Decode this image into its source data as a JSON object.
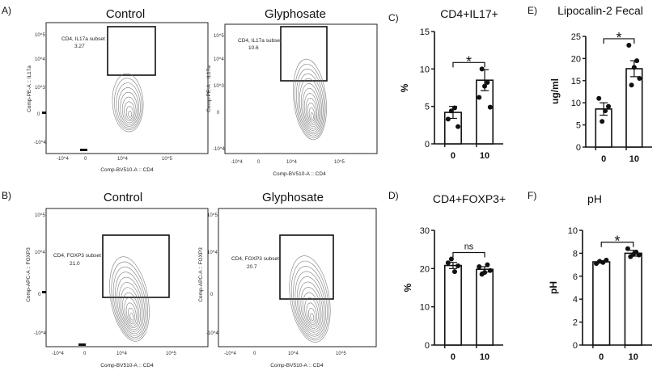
{
  "panel_labels": {
    "a": "A)",
    "b": "B)",
    "c": "C)",
    "d": "D)",
    "e": "E)",
    "f": "F)"
  },
  "flow": {
    "a_control": {
      "title": "Control",
      "gate_label": "CD4, IL17a subset",
      "gate_value": "3.27",
      "ylabel": "Comp-PE-A :: IL17a",
      "xlabel": "Comp-BV510-A :: CD4",
      "yticks": [
        "10^5",
        "10^4",
        "10^3",
        "0",
        "-10^4"
      ],
      "xticks": [
        "-10^4",
        "0",
        "10^4",
        "10^5"
      ]
    },
    "a_gly": {
      "title": "Glyphosate",
      "gate_label": "CD4, IL17a subset",
      "gate_value": "10.6",
      "ylabel": "Comp-PE-A :: IL17a",
      "xlabel": "Comp-BV510-A :: CD4",
      "yticks": [
        "10^5",
        "10^4",
        "10^3",
        "0",
        "-10^4"
      ],
      "xticks": [
        "-10^4",
        "0",
        "10^4",
        "10^5"
      ]
    },
    "b_control": {
      "title": "Control",
      "gate_label": "CD4, FOXP3 subset",
      "gate_value": "21.0",
      "ylabel": "Comp-APC-A :: FOXP3",
      "xlabel": "Comp-BV510-A :: CD4",
      "yticks": [
        "10^5",
        "10^4",
        "0",
        "-10^4"
      ],
      "xticks": [
        "-10^4",
        "0",
        "10^4",
        "10^5"
      ]
    },
    "b_gly": {
      "title": "Glyphosate",
      "gate_label": "CD4, FOXP3 subset",
      "gate_value": "20.7",
      "ylabel": "Comp-APC-A :: FOXP3",
      "xlabel": "Comp-BV510-A :: CD4",
      "yticks": [
        "10^5",
        "10^4",
        "0",
        "-10^4"
      ],
      "xticks": [
        "-10^4",
        "0",
        "10^4",
        "10^5"
      ]
    }
  },
  "chart_data": [
    {
      "id": "c",
      "type": "bar",
      "title": "CD4+IL17+",
      "categories": [
        "0",
        "10"
      ],
      "values": [
        4.2,
        8.5
      ],
      "sem": [
        0.8,
        1.4
      ],
      "points": [
        [
          3.3,
          4.4,
          4.8,
          2.3
        ],
        [
          6.2,
          10.0,
          7.7,
          8.2,
          4.9
        ]
      ],
      "ylabel": "%",
      "ylim": [
        0,
        15
      ],
      "yticks": [
        0,
        5,
        10,
        15
      ],
      "significance": "*"
    },
    {
      "id": "d",
      "type": "bar",
      "title": "CD4+FOXP3+",
      "categories": [
        "0",
        "10"
      ],
      "values": [
        20.8,
        19.8
      ],
      "sem": [
        0.8,
        0.7
      ],
      "points": [
        [
          21.5,
          22.5,
          19.2,
          20.7
        ],
        [
          20.5,
          18.5,
          19.0,
          21.0,
          19.5
        ]
      ],
      "ylabel": "%",
      "ylim": [
        0,
        30
      ],
      "yticks": [
        0,
        10,
        20,
        30
      ],
      "significance": "ns"
    },
    {
      "id": "e",
      "type": "bar",
      "title": "Lipocalin-2 Fecal",
      "categories": [
        "0",
        "10"
      ],
      "values": [
        8.6,
        17.7
      ],
      "sem": [
        1.4,
        1.8
      ],
      "points": [
        [
          11.0,
          5.8,
          8.2,
          9.2
        ],
        [
          23.0,
          14.0,
          18.0,
          19.5,
          15.5
        ]
      ],
      "ylabel": "ug/ml",
      "ylim": [
        0,
        25
      ],
      "yticks": [
        0,
        5,
        10,
        15,
        20,
        25
      ],
      "significance": "*"
    },
    {
      "id": "f",
      "type": "bar",
      "title": "pH",
      "categories": [
        "0",
        "10"
      ],
      "values": [
        7.25,
        8.0
      ],
      "sem": [
        0.1,
        0.25
      ],
      "points": [
        [
          7.1,
          7.3,
          7.2,
          7.4
        ],
        [
          8.4,
          7.7,
          7.9,
          8.1,
          7.85
        ]
      ],
      "ylabel": "pH",
      "ylim": [
        0,
        10
      ],
      "yticks": [
        0,
        2,
        4,
        6,
        8,
        10
      ],
      "significance": "*"
    }
  ]
}
